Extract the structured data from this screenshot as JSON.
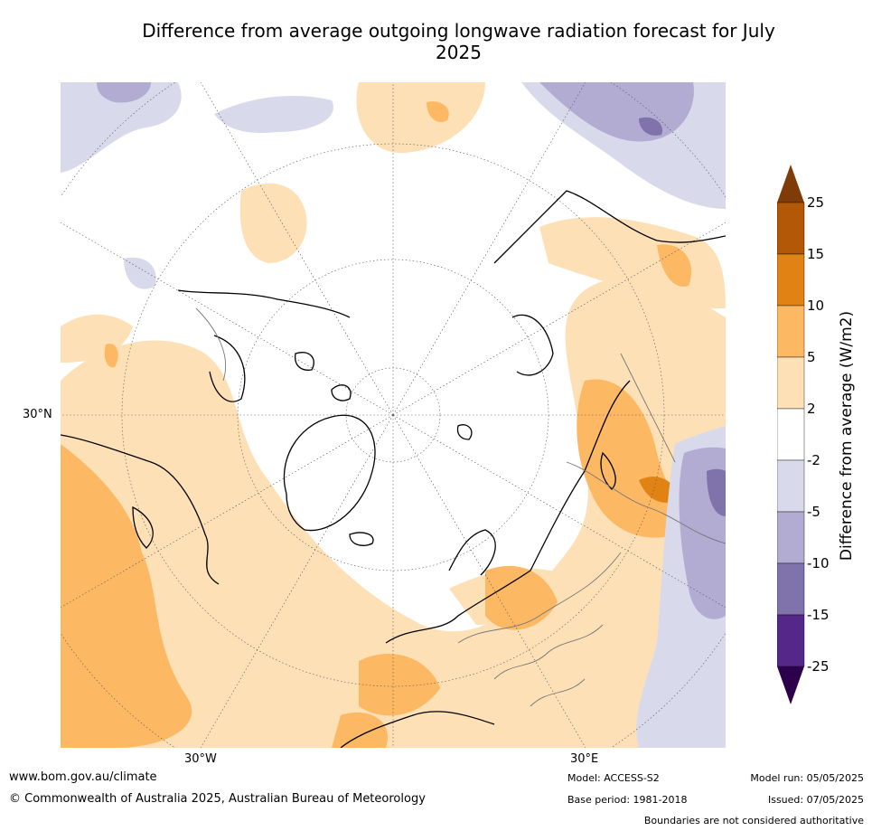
{
  "title": "Difference from average outgoing longwave radiation forecast for July 2025",
  "axis_labels": {
    "lat_30n": "30°N",
    "lon_30w": "30°W",
    "lon_30e": "30°E"
  },
  "colorbar": {
    "label": "Difference from average (W/m2)",
    "ticks": [
      "25",
      "15",
      "10",
      "5",
      "2",
      "-2",
      "-5",
      "-10",
      "-15",
      "-25"
    ],
    "colors": [
      "#7f3b08",
      "#b35806",
      "#e08214",
      "#fdb863",
      "#fee0b6",
      "#ffffff",
      "#d8daeb",
      "#b2abd2",
      "#8073ac",
      "#542788",
      "#2d004b"
    ]
  },
  "footer": {
    "website": "www.bom.gov.au/climate",
    "copyright": "© Commonwealth of Australia 2025, Australian Bureau of Meteorology",
    "model": "Model: ACCESS-S2",
    "base_period": "Base period: 1981-2018",
    "model_run": "Model run: 05/05/2025",
    "issued": "Issued: 07/05/2025",
    "disclaimer": "Boundaries are not considered authoritative"
  }
}
